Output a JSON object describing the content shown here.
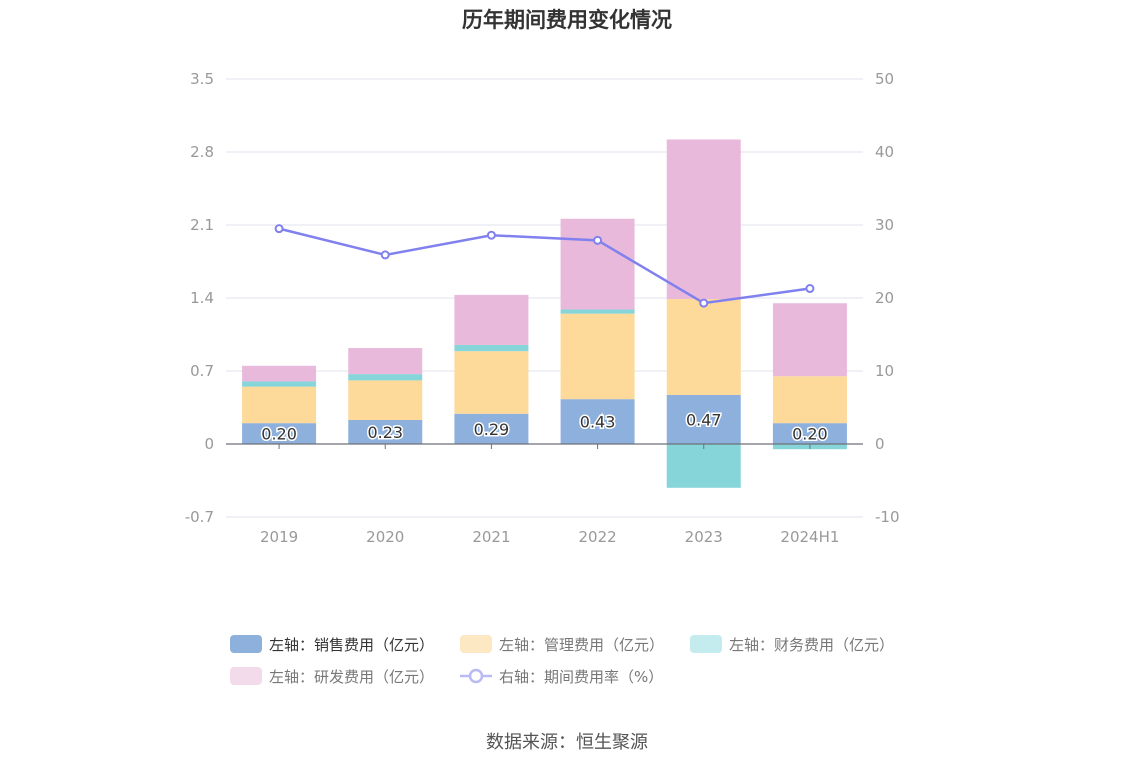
{
  "title": "历年期间费用变化情况",
  "source": "数据来源：恒生聚源",
  "colors": {
    "sales": "#8eb0dd",
    "admin": "#fdd99a",
    "finance": "#86d5d8",
    "rnd": "#e8b9da",
    "rate": "#8080ee",
    "axis_text": "#999999",
    "grid": "#e0e3ef",
    "zero_axis": "#6e7079"
  },
  "legend": [
    {
      "label": "左轴：销售费用（亿元）",
      "swatch": "#8eb0dd",
      "kind": "bar"
    },
    {
      "label": "左轴：管理费用（亿元）",
      "swatch": "#fde8c4",
      "kind": "bar"
    },
    {
      "label": "左轴：财务费用（亿元）",
      "swatch": "#c4ebed",
      "kind": "bar"
    },
    {
      "label": "左轴：研发费用（亿元）",
      "swatch": "#f3dbec",
      "kind": "bar"
    },
    {
      "label": "右轴：期间费用率（%）",
      "swatch": "#b9b9f4",
      "kind": "line"
    }
  ],
  "chart_data": {
    "type": "bar",
    "categories": [
      "2019",
      "2020",
      "2021",
      "2022",
      "2023",
      "2024H1"
    ],
    "series": [
      {
        "name": "左轴：销售费用（亿元）",
        "axis": "left",
        "stack": "cost",
        "values": [
          0.2,
          0.23,
          0.29,
          0.43,
          0.47,
          0.2
        ],
        "labels": [
          "0.20",
          "0.23",
          "0.29",
          "0.43",
          "0.47",
          "0.20"
        ]
      },
      {
        "name": "左轴：管理费用（亿元）",
        "axis": "left",
        "stack": "cost",
        "values": [
          0.35,
          0.38,
          0.6,
          0.82,
          0.92,
          0.45
        ]
      },
      {
        "name": "左轴：财务费用（亿元）",
        "axis": "left",
        "stack": "cost",
        "values": [
          0.05,
          0.06,
          0.06,
          0.04,
          -0.42,
          -0.05
        ]
      },
      {
        "name": "左轴：研发费用（亿元）",
        "axis": "left",
        "stack": "cost",
        "values": [
          0.15,
          0.25,
          0.48,
          0.87,
          1.53,
          0.7
        ]
      },
      {
        "name": "右轴：期间费用率（%）",
        "axis": "right",
        "type": "line",
        "values": [
          29.5,
          25.9,
          28.6,
          27.9,
          19.3,
          21.3
        ]
      }
    ],
    "y_left": {
      "min": -0.7,
      "max": 3.5,
      "ticks": [
        "-0.7",
        "0",
        "0.7",
        "1.4",
        "2.1",
        "2.8",
        "3.5"
      ]
    },
    "y_right": {
      "min": -10,
      "max": 50,
      "ticks": [
        "-10",
        "0",
        "10",
        "20",
        "30",
        "40",
        "50"
      ]
    },
    "grid": true,
    "legend_position": "bottom"
  }
}
